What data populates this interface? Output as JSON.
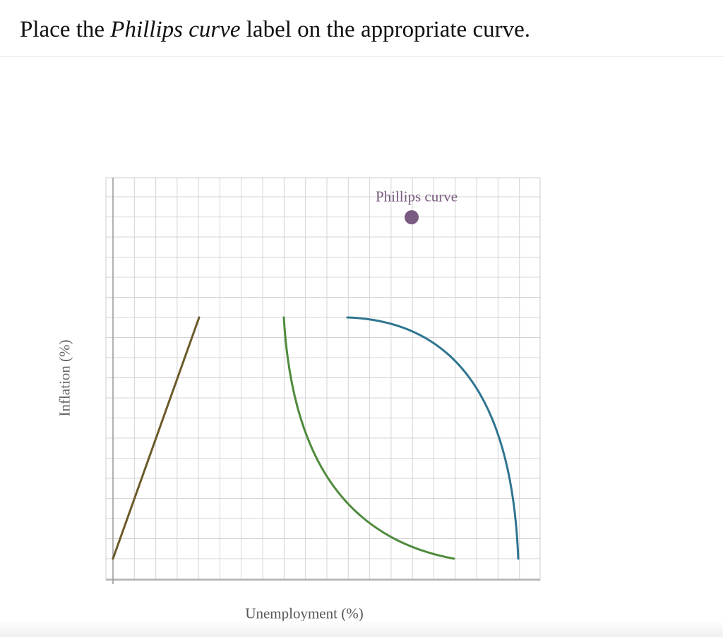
{
  "prompt": {
    "before": "Place the ",
    "emphasis": "Phillips curve",
    "after": " label on the appropriate curve."
  },
  "graph": {
    "y_axis_label": "Inflation (%)",
    "x_axis_label": "Unemployment (%)",
    "grid": true,
    "curves": [
      {
        "id": "straight-line",
        "color": "#6b5a2a"
      },
      {
        "id": "convex-curve",
        "color": "#4f8a3c"
      },
      {
        "id": "concave-curve",
        "color": "#2f7591"
      }
    ]
  },
  "draggable_label": {
    "text": "Phillips curve",
    "color": "#7a5a80"
  }
}
